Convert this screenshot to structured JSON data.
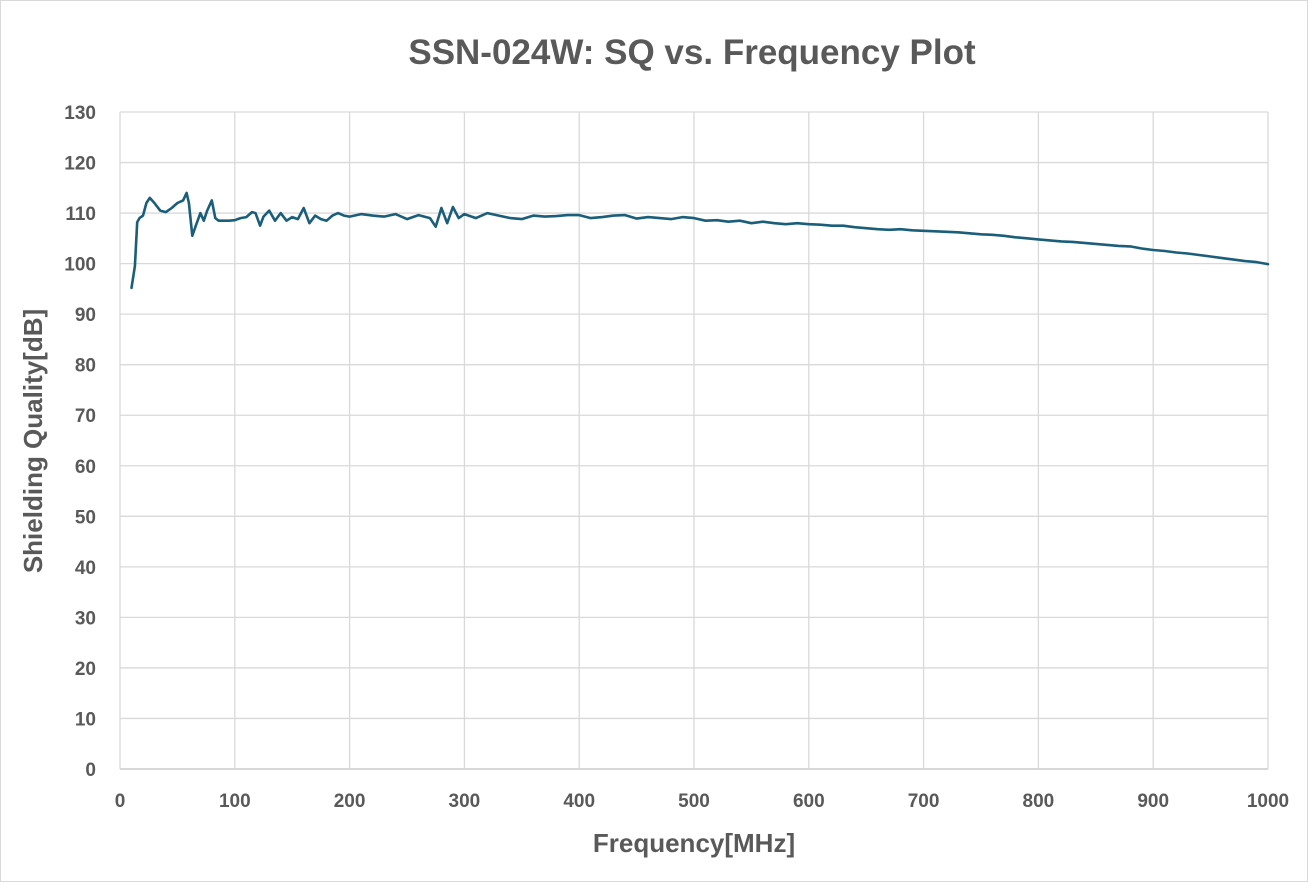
{
  "chart_data": {
    "type": "line",
    "title": "SSN-024W: SQ vs. Frequency Plot",
    "xlabel": "Frequency[MHz]",
    "ylabel": "Shielding Quality[dB]",
    "xlim": [
      0,
      1000
    ],
    "ylim": [
      0,
      130
    ],
    "xticks": [
      0,
      100,
      200,
      300,
      400,
      500,
      600,
      700,
      800,
      900,
      1000
    ],
    "yticks": [
      0,
      10,
      20,
      30,
      40,
      50,
      60,
      70,
      80,
      90,
      100,
      110,
      120,
      130
    ],
    "grid": true,
    "legend": "none",
    "line_color": "#1b5e7a",
    "series": [
      {
        "x": [
          10,
          13,
          15,
          17,
          20,
          23,
          26,
          30,
          35,
          40,
          45,
          50,
          55,
          58,
          60,
          63,
          66,
          70,
          73,
          76,
          80,
          83,
          86,
          90,
          95,
          100,
          105,
          110,
          115,
          118,
          122,
          125,
          130,
          135,
          140,
          145,
          150,
          155,
          160,
          165,
          170,
          175,
          180,
          185,
          190,
          195,
          200,
          210,
          220,
          230,
          240,
          250,
          260,
          270,
          275,
          280,
          285,
          290,
          295,
          300,
          310,
          320,
          330,
          340,
          350,
          360,
          370,
          380,
          390,
          400,
          410,
          420,
          430,
          440,
          450,
          460,
          470,
          480,
          490,
          500,
          510,
          520,
          530,
          540,
          550,
          560,
          570,
          580,
          590,
          600,
          610,
          620,
          630,
          640,
          650,
          660,
          670,
          680,
          690,
          700,
          710,
          720,
          730,
          740,
          750,
          760,
          770,
          780,
          790,
          800,
          810,
          820,
          830,
          840,
          850,
          860,
          870,
          880,
          890,
          900,
          910,
          920,
          930,
          940,
          950,
          960,
          970,
          980,
          990,
          1000
        ],
        "y": [
          95.2,
          99.5,
          108.2,
          109.0,
          109.5,
          112.0,
          113.0,
          112.0,
          110.5,
          110.2,
          111.0,
          112.0,
          112.5,
          114.0,
          112.0,
          105.5,
          107.5,
          110.0,
          108.5,
          110.5,
          112.5,
          109.0,
          108.5,
          108.5,
          108.5,
          108.6,
          109.0,
          109.2,
          110.2,
          110.0,
          107.5,
          109.3,
          110.5,
          108.5,
          110.0,
          108.5,
          109.2,
          108.8,
          111.0,
          108.0,
          109.5,
          108.8,
          108.5,
          109.5,
          110.0,
          109.5,
          109.3,
          109.8,
          109.5,
          109.3,
          109.8,
          108.8,
          109.6,
          109.0,
          107.3,
          111.0,
          108.0,
          111.2,
          109.0,
          109.8,
          109.0,
          110.0,
          109.5,
          109.0,
          108.8,
          109.5,
          109.3,
          109.4,
          109.6,
          109.6,
          109.0,
          109.2,
          109.5,
          109.6,
          108.9,
          109.2,
          109.0,
          108.8,
          109.2,
          109.0,
          108.5,
          108.6,
          108.3,
          108.5,
          108.0,
          108.3,
          108.0,
          107.8,
          108.0,
          107.8,
          107.7,
          107.5,
          107.5,
          107.2,
          107.0,
          106.8,
          106.7,
          106.8,
          106.6,
          106.5,
          106.4,
          106.3,
          106.2,
          106.0,
          105.8,
          105.7,
          105.5,
          105.2,
          105.0,
          104.8,
          104.6,
          104.4,
          104.3,
          104.1,
          103.9,
          103.7,
          103.5,
          103.4,
          103.0,
          102.7,
          102.5,
          102.2,
          102.0,
          101.7,
          101.4,
          101.1,
          100.8,
          100.5,
          100.3,
          99.9
        ]
      }
    ]
  }
}
